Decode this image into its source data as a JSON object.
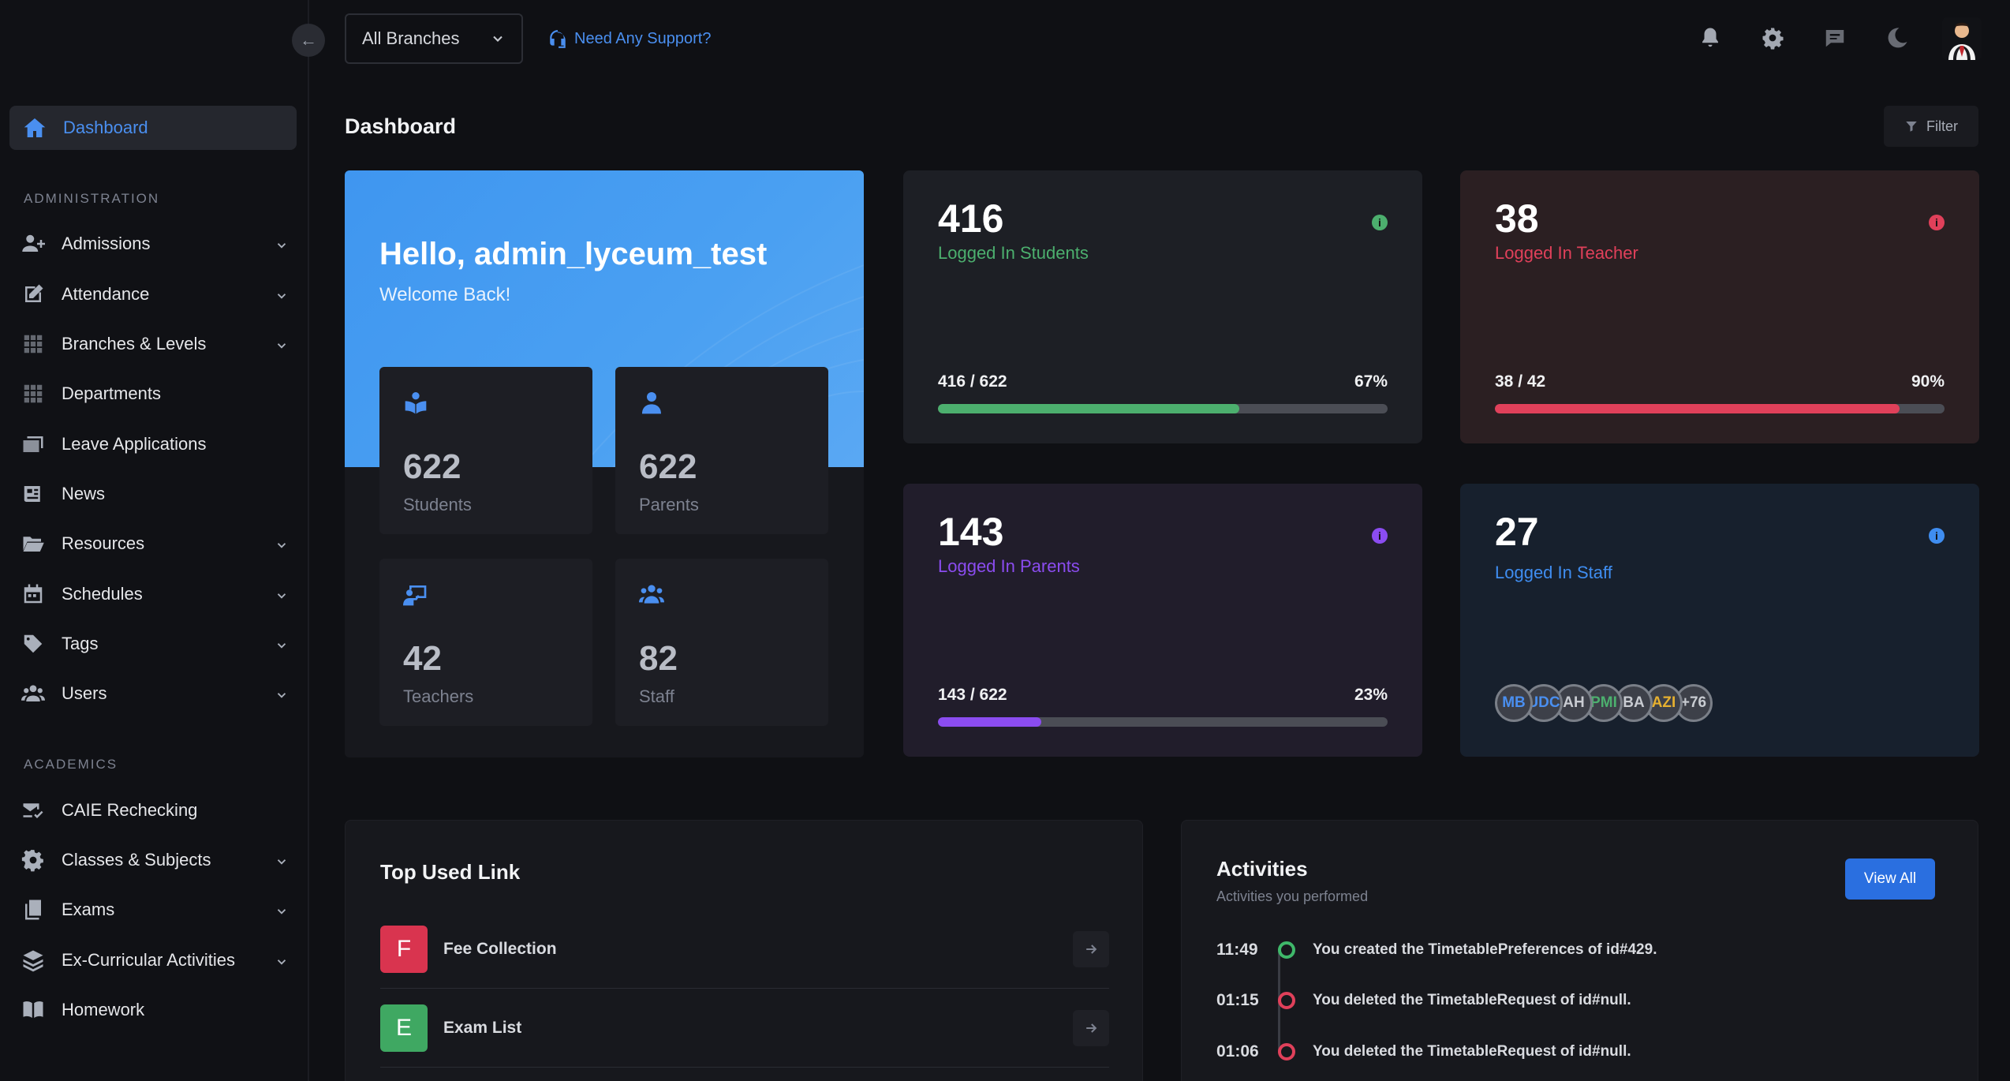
{
  "topbar": {
    "branch_selected": "All Branches",
    "support_label": "Need Any Support?"
  },
  "sidebar": {
    "active": {
      "label": "Dashboard",
      "icon": "home-icon",
      "color": "#4a8ff0"
    },
    "section_admin": "ADMINISTRATION",
    "admin_items": [
      {
        "label": "Admissions",
        "icon": "user-plus-icon",
        "has_children": true
      },
      {
        "label": "Attendance",
        "icon": "edit-icon",
        "has_children": true
      },
      {
        "label": "Branches & Levels",
        "icon": "grid-icon",
        "has_children": true
      },
      {
        "label": "Departments",
        "icon": "grid-icon",
        "has_children": false
      },
      {
        "label": "Leave Applications",
        "icon": "mail-stack-icon",
        "has_children": false
      },
      {
        "label": "News",
        "icon": "newspaper-icon",
        "has_children": false
      },
      {
        "label": "Resources",
        "icon": "folder-open-icon",
        "has_children": true
      },
      {
        "label": "Schedules",
        "icon": "calendar-icon",
        "has_children": true
      },
      {
        "label": "Tags",
        "icon": "tag-icon",
        "has_children": true
      },
      {
        "label": "Users",
        "icon": "users-icon",
        "has_children": true
      }
    ],
    "section_academics": "ACADEMICS",
    "academic_items": [
      {
        "label": "CAIE Rechecking",
        "icon": "mail-check-icon",
        "has_children": false
      },
      {
        "label": "Classes & Subjects",
        "icon": "gear-icon",
        "has_children": true
      },
      {
        "label": "Exams",
        "icon": "copy-icon",
        "has_children": true
      },
      {
        "label": "Ex-Curricular Activities",
        "icon": "layers-icon",
        "has_children": true
      },
      {
        "label": "Homework",
        "icon": "book-icon",
        "has_children": false
      }
    ]
  },
  "page": {
    "title": "Dashboard",
    "filter_label": "Filter"
  },
  "welcome": {
    "greeting": "Hello, admin_lyceum_test",
    "sub": "Welcome Back!",
    "cards": [
      {
        "value": "622",
        "label": "Students",
        "icon": "reader-icon"
      },
      {
        "value": "622",
        "label": "Parents",
        "icon": "person-icon"
      },
      {
        "value": "42",
        "label": "Teachers",
        "icon": "teacher-board-icon"
      },
      {
        "value": "82",
        "label": "Staff",
        "icon": "group-icon"
      }
    ]
  },
  "stats": {
    "students": {
      "value": "416",
      "label": "Logged In Students",
      "ratio": "416 / 622",
      "pct": "67%",
      "fraction": 0.67,
      "color": "#4caf6e",
      "bg": "#1d1f25"
    },
    "teachers": {
      "value": "38",
      "label": "Logged In Teacher",
      "ratio": "38 / 42",
      "pct": "90%",
      "fraction": 0.9,
      "color": "#e0405a",
      "bg": "#2b1f22"
    },
    "parents": {
      "value": "143",
      "label": "Logged In Parents",
      "ratio": "143 / 622",
      "pct": "23%",
      "fraction": 0.23,
      "color": "#8b4cf0",
      "bg": "#211d2b"
    },
    "staff": {
      "value": "27",
      "label": "Logged In Staff",
      "color": "#3f8df0",
      "bg": "#17202d",
      "avatars": [
        {
          "text": "MB",
          "color": "#4a8ff0"
        },
        {
          "text": "UDC",
          "color": "#4a8ff0"
        },
        {
          "text": "AH",
          "color": "#c9ccd2"
        },
        {
          "text": "PMI",
          "color": "#4caf6e"
        },
        {
          "text": "BA",
          "color": "#c9ccd2"
        },
        {
          "text": "AZI",
          "color": "#e6b030"
        },
        {
          "text": "+76",
          "color": "#c9ccd2"
        }
      ]
    }
  },
  "top_links": {
    "title": "Top Used Link",
    "items": [
      {
        "letter": "F",
        "label": "Fee Collection",
        "color": "#d9344f"
      },
      {
        "letter": "E",
        "label": "Exam List",
        "color": "#3fa862"
      }
    ]
  },
  "activities": {
    "title": "Activities",
    "subtitle": "Activities you performed",
    "view_all": "View All",
    "items": [
      {
        "time": "11:49",
        "text": "You created the TimetablePreferences of id#429.",
        "color": "#3fb86a"
      },
      {
        "time": "01:15",
        "text": "You deleted the TimetableRequest of id#null.",
        "color": "#e0405a"
      },
      {
        "time": "01:06",
        "text": "You deleted the TimetableRequest of id#null.",
        "color": "#e0405a"
      }
    ]
  }
}
